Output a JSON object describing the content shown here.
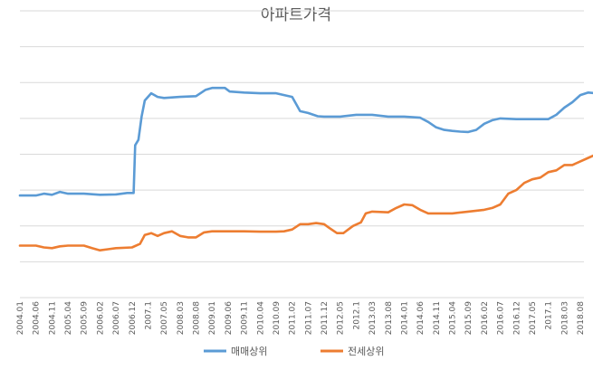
{
  "chart_data": {
    "type": "line",
    "title": "아파트가격",
    "xlabel": "",
    "ylabel": "",
    "ylim": [
      0,
      8
    ],
    "grid": true,
    "legend_position": "bottom",
    "x_tick_labels": [
      "2004.01",
      "2004.06",
      "2004.11",
      "2005.04",
      "2005.09",
      "2006.02",
      "2006.07",
      "2006.12",
      "2007.1",
      "2007.05",
      "2008.03",
      "2008.08",
      "2009.01",
      "2009.06",
      "2009.11",
      "2010.04",
      "2010.09",
      "2011.02",
      "2011.07",
      "2011.12",
      "2012.05",
      "2012.1",
      "2013.03",
      "2013.08",
      "2014.01",
      "2014.06",
      "2014.11",
      "2015.04",
      "2015.09",
      "2016.02",
      "2016.07",
      "2016.12",
      "2017.05",
      "2017.1",
      "2018.03",
      "2018.08"
    ],
    "series": [
      {
        "name": "매매상위",
        "color": "#5B9BD5",
        "values": [
          [
            0,
            2.85
          ],
          [
            1,
            2.85
          ],
          [
            1.5,
            2.9
          ],
          [
            2,
            2.87
          ],
          [
            2.5,
            2.95
          ],
          [
            3,
            2.9
          ],
          [
            4,
            2.9
          ],
          [
            5,
            2.87
          ],
          [
            6,
            2.88
          ],
          [
            6.7,
            2.92
          ],
          [
            7.1,
            2.92
          ],
          [
            7.2,
            4.25
          ],
          [
            7.4,
            4.4
          ],
          [
            7.6,
            5.05
          ],
          [
            7.8,
            5.5
          ],
          [
            8.2,
            5.7
          ],
          [
            8.6,
            5.6
          ],
          [
            9,
            5.57
          ],
          [
            10,
            5.6
          ],
          [
            11,
            5.62
          ],
          [
            11.6,
            5.8
          ],
          [
            12,
            5.85
          ],
          [
            12.8,
            5.85
          ],
          [
            13.1,
            5.75
          ],
          [
            14,
            5.72
          ],
          [
            15,
            5.7
          ],
          [
            16,
            5.7
          ],
          [
            16.5,
            5.65
          ],
          [
            17,
            5.6
          ],
          [
            17.5,
            5.2
          ],
          [
            18,
            5.15
          ],
          [
            18.6,
            5.06
          ],
          [
            19,
            5.05
          ],
          [
            20,
            5.05
          ],
          [
            21,
            5.1
          ],
          [
            22,
            5.1
          ],
          [
            23,
            5.05
          ],
          [
            24,
            5.05
          ],
          [
            25,
            5.02
          ],
          [
            25.5,
            4.9
          ],
          [
            26,
            4.75
          ],
          [
            26.5,
            4.68
          ],
          [
            27,
            4.65
          ],
          [
            27.5,
            4.63
          ],
          [
            28,
            4.62
          ],
          [
            28.5,
            4.68
          ],
          [
            29,
            4.85
          ],
          [
            29.5,
            4.95
          ],
          [
            30,
            5.0
          ],
          [
            31,
            4.98
          ],
          [
            32,
            4.98
          ],
          [
            33,
            4.98
          ],
          [
            33.5,
            5.1
          ],
          [
            34,
            5.3
          ],
          [
            34.5,
            5.45
          ],
          [
            35,
            5.65
          ],
          [
            35.5,
            5.72
          ],
          [
            36,
            5.7
          ],
          [
            36.5,
            5.62
          ],
          [
            37,
            5.65
          ],
          [
            37.5,
            5.75
          ],
          [
            38,
            5.85
          ],
          [
            39,
            5.85
          ],
          [
            40,
            5.85
          ],
          [
            41,
            5.85
          ],
          [
            41.5,
            5.9
          ],
          [
            42,
            5.95
          ],
          [
            42.5,
            6.05
          ],
          [
            43,
            6.0
          ],
          [
            43.5,
            6.2
          ],
          [
            44,
            6.5
          ],
          [
            44.5,
            6.8
          ],
          [
            44.8,
            7.1
          ]
        ]
      },
      {
        "name": "전세상위",
        "color": "#ED7D31",
        "values": [
          [
            0,
            1.45
          ],
          [
            1,
            1.45
          ],
          [
            1.5,
            1.4
          ],
          [
            2,
            1.38
          ],
          [
            2.5,
            1.43
          ],
          [
            3,
            1.45
          ],
          [
            4,
            1.45
          ],
          [
            4.5,
            1.38
          ],
          [
            5,
            1.32
          ],
          [
            5.5,
            1.35
          ],
          [
            6,
            1.38
          ],
          [
            7,
            1.4
          ],
          [
            7.5,
            1.5
          ],
          [
            7.8,
            1.75
          ],
          [
            8.2,
            1.8
          ],
          [
            8.6,
            1.72
          ],
          [
            9,
            1.8
          ],
          [
            9.5,
            1.85
          ],
          [
            10,
            1.72
          ],
          [
            10.5,
            1.68
          ],
          [
            11,
            1.68
          ],
          [
            11.5,
            1.82
          ],
          [
            12,
            1.85
          ],
          [
            13,
            1.85
          ],
          [
            14,
            1.85
          ],
          [
            15,
            1.84
          ],
          [
            16,
            1.84
          ],
          [
            16.5,
            1.85
          ],
          [
            17,
            1.9
          ],
          [
            17.5,
            2.05
          ],
          [
            18,
            2.05
          ],
          [
            18.5,
            2.08
          ],
          [
            19,
            2.05
          ],
          [
            19.3,
            1.95
          ],
          [
            19.8,
            1.8
          ],
          [
            20.2,
            1.8
          ],
          [
            20.8,
            2.0
          ],
          [
            21.3,
            2.1
          ],
          [
            21.6,
            2.35
          ],
          [
            22,
            2.4
          ],
          [
            23,
            2.38
          ],
          [
            23.5,
            2.5
          ],
          [
            24,
            2.6
          ],
          [
            24.5,
            2.58
          ],
          [
            25,
            2.45
          ],
          [
            25.5,
            2.35
          ],
          [
            26,
            2.35
          ],
          [
            27,
            2.35
          ],
          [
            28,
            2.4
          ],
          [
            29,
            2.45
          ],
          [
            29.5,
            2.5
          ],
          [
            30,
            2.6
          ],
          [
            30.5,
            2.9
          ],
          [
            31,
            3.0
          ],
          [
            31.5,
            3.2
          ],
          [
            32,
            3.3
          ],
          [
            32.5,
            3.35
          ],
          [
            33,
            3.5
          ],
          [
            33.5,
            3.55
          ],
          [
            34,
            3.7
          ],
          [
            34.5,
            3.7
          ],
          [
            35,
            3.8
          ],
          [
            35.5,
            3.9
          ],
          [
            36,
            4.0
          ],
          [
            36.5,
            4.2
          ],
          [
            37,
            4.3
          ],
          [
            37.5,
            4.45
          ],
          [
            38,
            4.5
          ],
          [
            39,
            4.5
          ],
          [
            40,
            4.5
          ],
          [
            40.5,
            4.55
          ],
          [
            41,
            4.6
          ],
          [
            42,
            4.6
          ],
          [
            43,
            4.6
          ],
          [
            44,
            4.6
          ],
          [
            44.8,
            4.62
          ]
        ]
      }
    ]
  }
}
